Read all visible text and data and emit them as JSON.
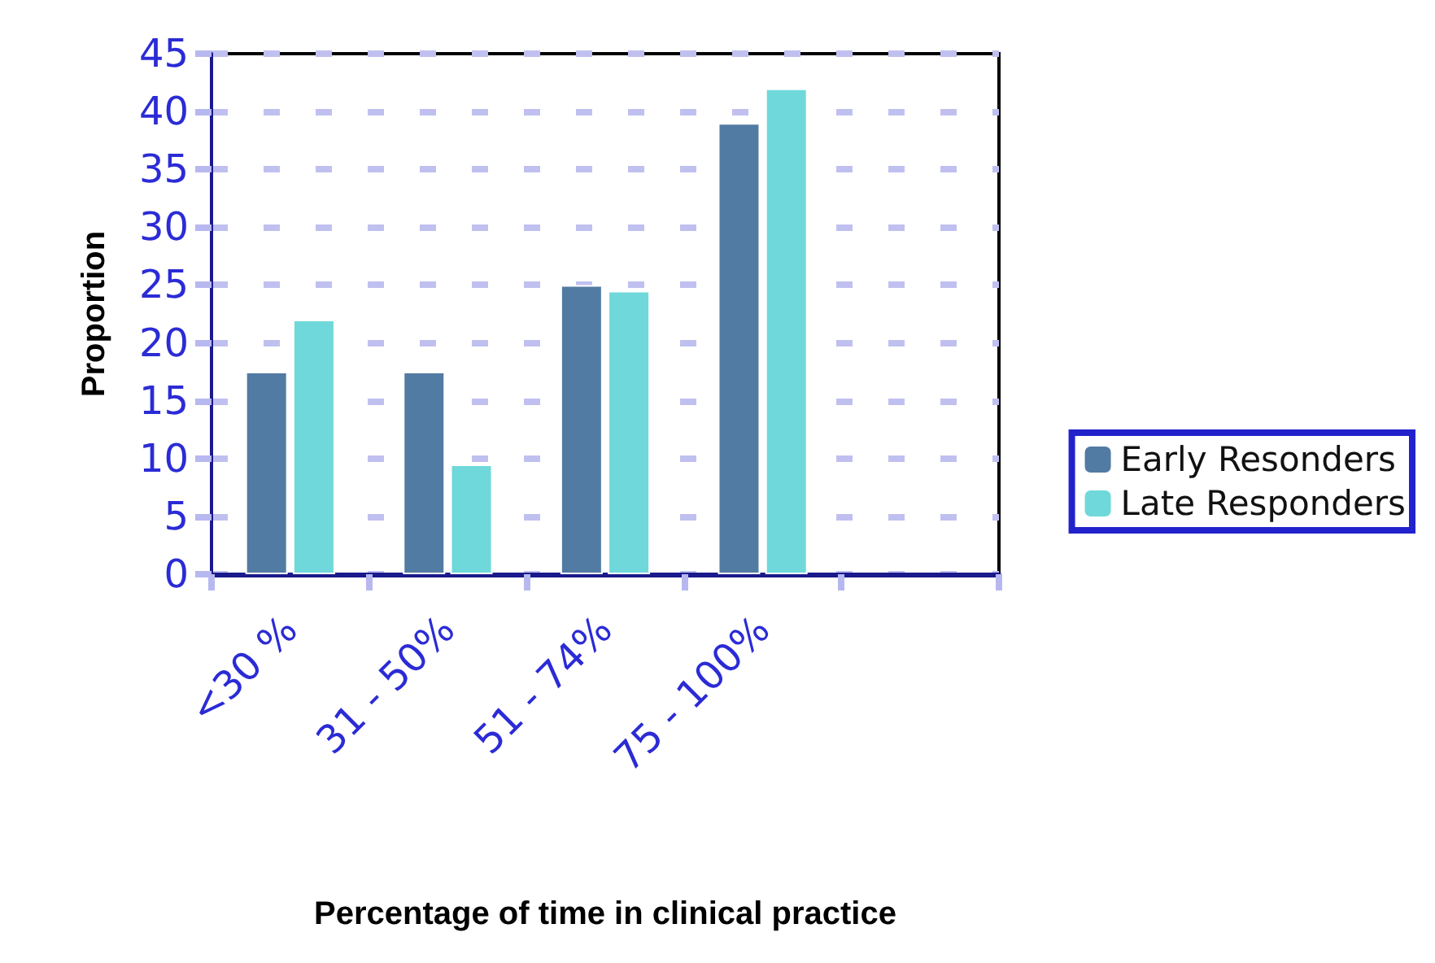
{
  "chart_data": {
    "type": "bar",
    "xlabel": "Percentage of time in clinical practice",
    "ylabel": "Proportion",
    "categories": [
      "<30 %",
      "31 - 50%",
      "51 - 74%",
      "75 - 100%",
      null
    ],
    "series": [
      {
        "name": "Early Resonders",
        "color": "#527ba3",
        "values": [
          17.5,
          17.5,
          25,
          39,
          null
        ]
      },
      {
        "name": "Late Responders",
        "color": "#6fd8da",
        "values": [
          22,
          9.5,
          24.5,
          42,
          null
        ]
      }
    ],
    "ylim": [
      0,
      45
    ],
    "yticks": [
      0,
      5,
      10,
      15,
      20,
      25,
      30,
      35,
      40,
      45
    ],
    "grid": "y",
    "legend": "right"
  }
}
